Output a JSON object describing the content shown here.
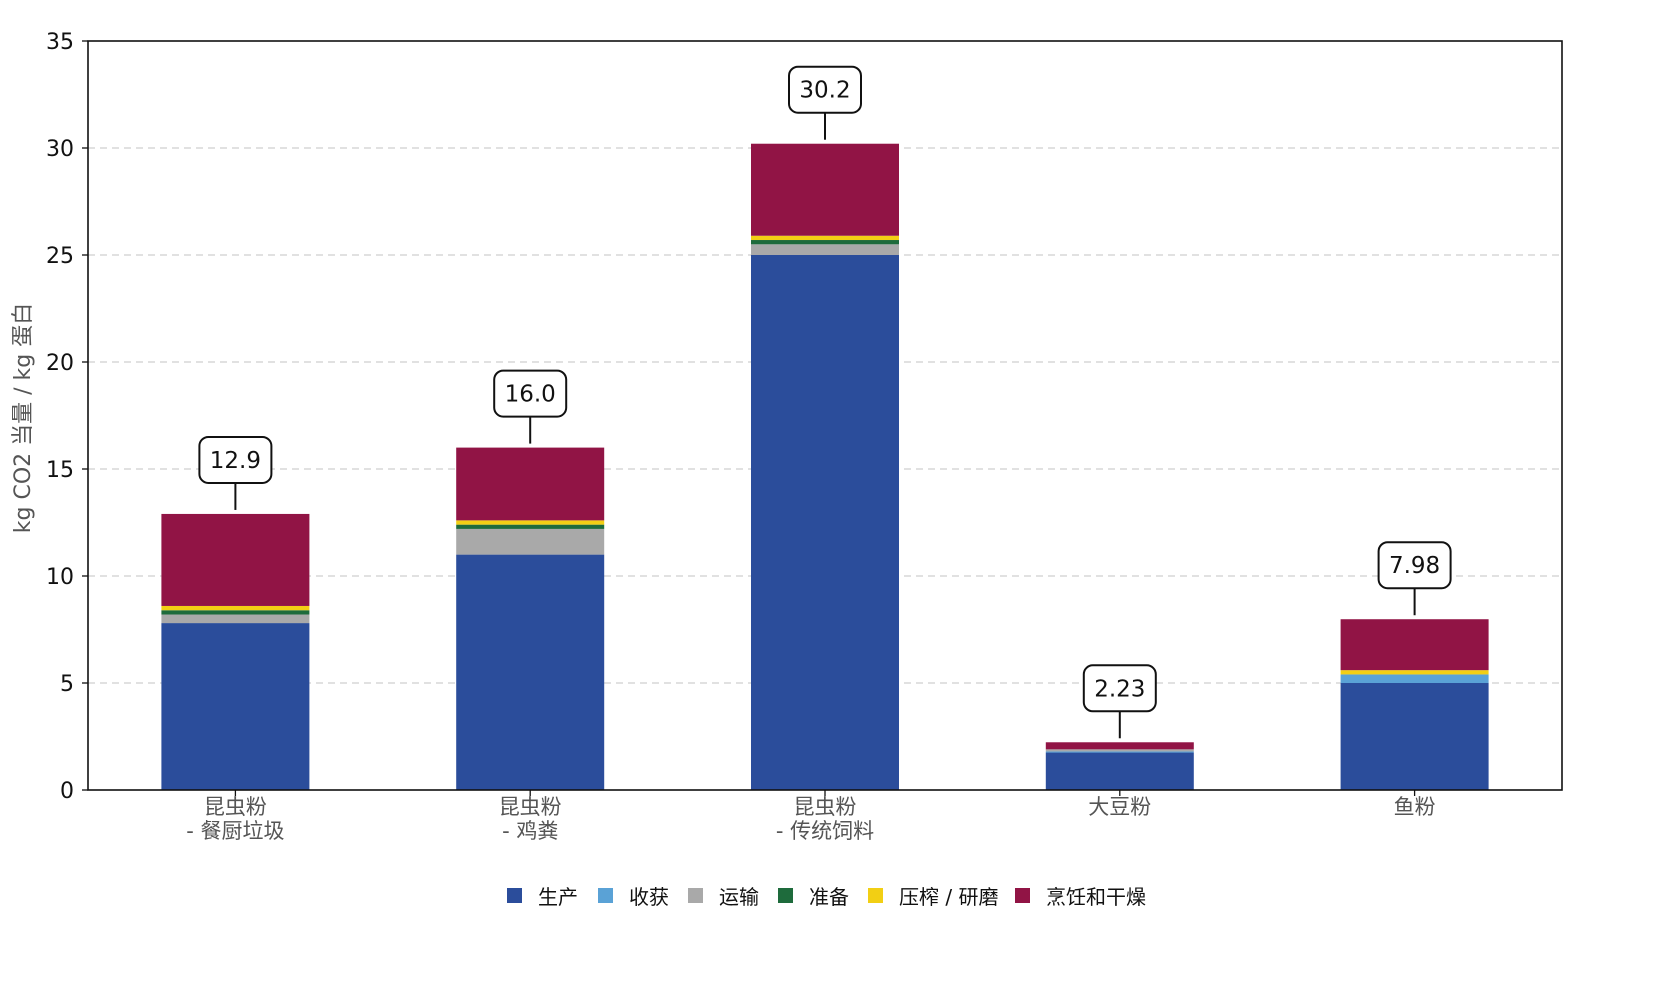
{
  "chart_data": {
    "type": "bar",
    "stacked": true,
    "title": "",
    "xlabel": "",
    "ylabel": "kg CO2 当量 / kg 蛋白",
    "ylim": [
      0,
      35
    ],
    "yticks": [
      0,
      5,
      10,
      15,
      20,
      25,
      30,
      35
    ],
    "grid": "horizontal dashed",
    "legend_position": "bottom-center",
    "categories": [
      [
        "昆虫粉",
        "- 餐厨垃圾"
      ],
      [
        "昆虫粉",
        "- 鸡粪"
      ],
      [
        "昆虫粉",
        "- 传统饲料"
      ],
      [
        "大豆粉"
      ],
      [
        "鱼粉"
      ]
    ],
    "series": [
      {
        "name": "生产",
        "color": "#2b4d9b",
        "values": [
          7.8,
          11.0,
          25.0,
          1.75,
          5.0
        ]
      },
      {
        "name": "收获",
        "color": "#5aa2d6",
        "values": [
          0.0,
          0.0,
          0.0,
          0.05,
          0.4
        ]
      },
      {
        "name": "运输",
        "color": "#a9a9a9",
        "values": [
          0.4,
          1.2,
          0.5,
          0.1,
          0.0
        ]
      },
      {
        "name": "准备",
        "color": "#1e6b3c",
        "values": [
          0.2,
          0.2,
          0.2,
          0.0,
          0.0
        ]
      },
      {
        "name": "压榨 / 研磨",
        "color": "#f2cf14",
        "values": [
          0.2,
          0.2,
          0.2,
          0.0,
          0.2
        ]
      },
      {
        "name": "烹饪和干燥",
        "color": "#911445",
        "values": [
          4.3,
          3.4,
          4.3,
          0.33,
          2.38
        ]
      }
    ],
    "totals": [
      "12.9",
      "16.0",
      "30.2",
      "2.23",
      "7.98"
    ],
    "total_values": [
      12.9,
      16.0,
      30.2,
      2.23,
      7.98
    ]
  }
}
